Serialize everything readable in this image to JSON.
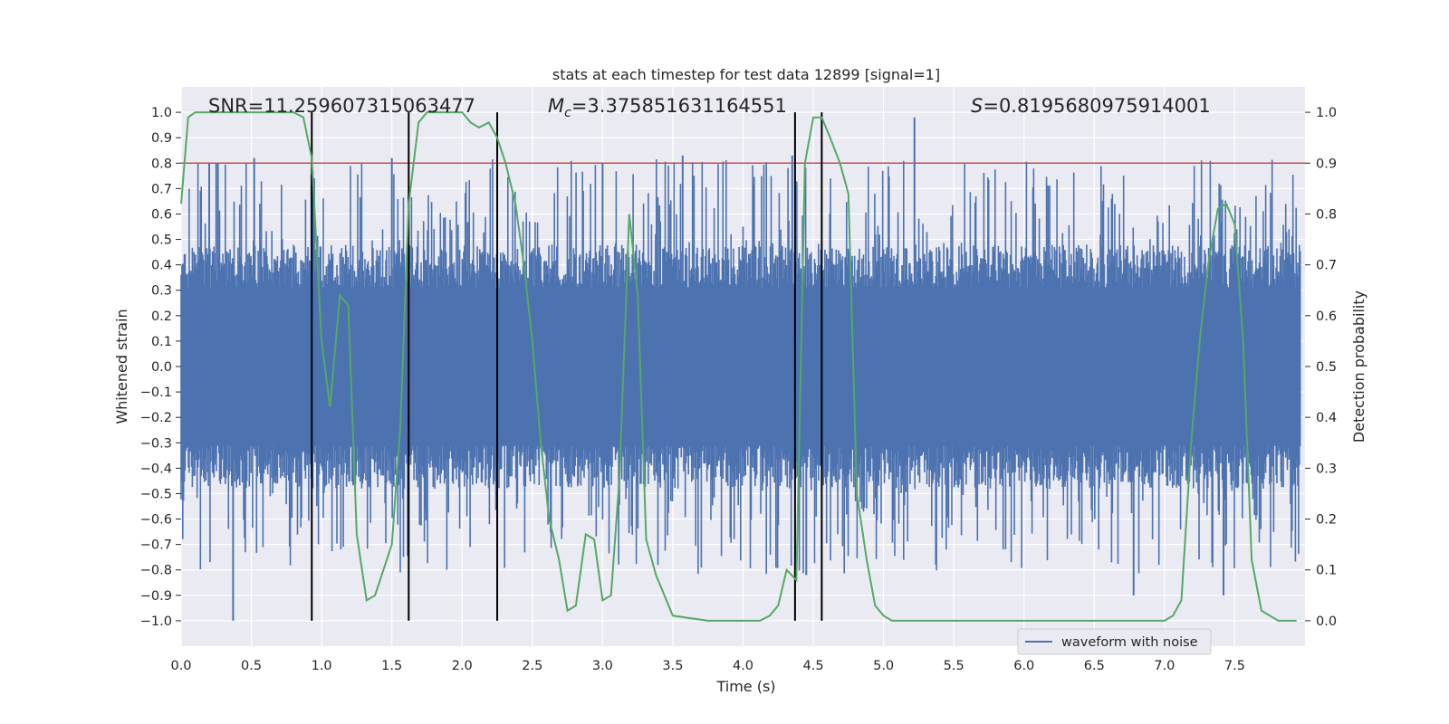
{
  "chart_data": {
    "type": "line",
    "title": "stats at each timestep for test data 12899 [signal=1]",
    "xlabel": "Time (s)",
    "ylabel": "Whitened strain",
    "ylabel_right": "Detection probability",
    "xlim": [
      0.0,
      8.0
    ],
    "ylim": [
      -1.1,
      1.1
    ],
    "ylim_right": [
      -0.05,
      1.05
    ],
    "xticks": [
      0.0,
      0.5,
      1.0,
      1.5,
      2.0,
      2.5,
      3.0,
      3.5,
      4.0,
      4.5,
      5.0,
      5.5,
      6.0,
      6.5,
      7.0,
      7.5
    ],
    "xtick_labels": [
      "0.0",
      "0.5",
      "1.0",
      "1.5",
      "2.0",
      "2.5",
      "3.0",
      "3.5",
      "4.0",
      "4.5",
      "5.0",
      "5.5",
      "6.0",
      "6.5",
      "7.0",
      "7.5"
    ],
    "yticks": [
      1.0,
      0.9,
      0.8,
      0.7,
      0.6,
      0.5,
      0.4,
      0.3,
      0.2,
      0.1,
      0.0,
      -0.1,
      -0.2,
      -0.3,
      -0.4,
      -0.5,
      -0.6,
      -0.7,
      -0.8,
      -0.9,
      -1.0
    ],
    "ytick_labels": [
      "1.0",
      "0.9",
      "0.8",
      "0.7",
      "0.6",
      "0.5",
      "0.4",
      "0.3",
      "0.2",
      "0.1",
      "0.0",
      "−0.1",
      "−0.2",
      "−0.3",
      "−0.4",
      "−0.5",
      "−0.6",
      "−0.7",
      "−0.8",
      "−0.9",
      "−1.0"
    ],
    "yticks_right": [
      1.0,
      0.9,
      0.8,
      0.7,
      0.6,
      0.5,
      0.4,
      0.3,
      0.2,
      0.1,
      0.0
    ],
    "ytick_labels_right": [
      "1.0",
      "0.9",
      "0.8",
      "0.7",
      "0.6",
      "0.5",
      "0.4",
      "0.3",
      "0.2",
      "0.1",
      "0.0"
    ],
    "grid": true,
    "annotations": {
      "snr": "SNR=11.259607315063477",
      "mc_symbol": "M",
      "mc_sub": "c",
      "mc_value": "=3.375851631164551",
      "s_symbol": "S",
      "s_value": "=0.8195680975914001"
    },
    "threshold": {
      "axis": "right",
      "value": 0.9,
      "color": "#c44e52"
    },
    "vertical_lines": [
      0.93,
      1.62,
      2.25,
      4.37,
      4.56
    ],
    "legend": {
      "label": "waveform with noise",
      "location": "lower-right"
    },
    "series": [
      {
        "name": "waveform with noise",
        "axis": "left",
        "color": "#4c72b0",
        "style": "dense-noise",
        "core_amplitude": 0.4,
        "peaks": [
          {
            "x": 0.37,
            "y": -1.0
          },
          {
            "x": 0.52,
            "y": 0.82
          },
          {
            "x": 0.2,
            "y": 0.8
          },
          {
            "x": 0.25,
            "y": 0.8
          },
          {
            "x": 1.5,
            "y": 0.82
          },
          {
            "x": 3.0,
            "y": 0.8
          },
          {
            "x": 3.57,
            "y": 0.83
          },
          {
            "x": 5.22,
            "y": 0.98
          },
          {
            "x": 6.78,
            "y": -0.9
          },
          {
            "x": 7.42,
            "y": -0.9
          },
          {
            "x": 4.35,
            "y": 0.83
          },
          {
            "x": 4.45,
            "y": -0.82
          }
        ]
      },
      {
        "name": "Detection probability",
        "axis": "right",
        "color": "#55a868",
        "x": [
          0.0,
          0.05,
          0.1,
          0.2,
          0.4,
          0.6,
          0.8,
          0.87,
          0.93,
          1.0,
          1.06,
          1.13,
          1.19,
          1.25,
          1.32,
          1.38,
          1.44,
          1.5,
          1.56,
          1.62,
          1.69,
          1.75,
          1.81,
          1.88,
          1.94,
          2.0,
          2.06,
          2.12,
          2.19,
          2.25,
          2.31,
          2.38,
          2.44,
          2.5,
          2.56,
          2.62,
          2.69,
          2.75,
          2.81,
          2.88,
          2.94,
          3.0,
          3.06,
          3.12,
          3.19,
          3.25,
          3.31,
          3.38,
          3.44,
          3.5,
          3.75,
          4.0,
          4.06,
          4.12,
          4.19,
          4.25,
          4.31,
          4.38,
          4.44,
          4.5,
          4.56,
          4.62,
          4.69,
          4.75,
          4.81,
          4.88,
          4.94,
          5.0,
          5.06,
          5.5,
          6.0,
          6.2,
          6.5,
          6.7,
          6.8,
          7.0,
          7.06,
          7.12,
          7.19,
          7.25,
          7.31,
          7.38,
          7.44,
          7.5,
          7.56,
          7.62,
          7.69,
          7.75,
          7.81,
          7.94
        ],
        "values": [
          0.82,
          0.99,
          1.0,
          1.0,
          1.0,
          1.0,
          1.0,
          0.99,
          0.91,
          0.55,
          0.42,
          0.64,
          0.62,
          0.17,
          0.04,
          0.05,
          0.1,
          0.15,
          0.38,
          0.82,
          0.98,
          1.0,
          1.0,
          1.0,
          1.0,
          1.0,
          0.98,
          0.97,
          0.98,
          0.95,
          0.9,
          0.82,
          0.7,
          0.55,
          0.35,
          0.2,
          0.12,
          0.02,
          0.03,
          0.17,
          0.16,
          0.04,
          0.05,
          0.28,
          0.8,
          0.64,
          0.16,
          0.09,
          0.05,
          0.01,
          0.0,
          0.0,
          0.0,
          0.0,
          0.01,
          0.03,
          0.1,
          0.08,
          0.9,
          0.99,
          0.99,
          0.95,
          0.9,
          0.84,
          0.25,
          0.12,
          0.03,
          0.01,
          0.0,
          0.0,
          0.0,
          0.0,
          0.0,
          0.0,
          0.0,
          0.0,
          0.01,
          0.04,
          0.35,
          0.55,
          0.7,
          0.81,
          0.82,
          0.78,
          0.55,
          0.12,
          0.02,
          0.01,
          0.0,
          0.0
        ]
      }
    ]
  }
}
